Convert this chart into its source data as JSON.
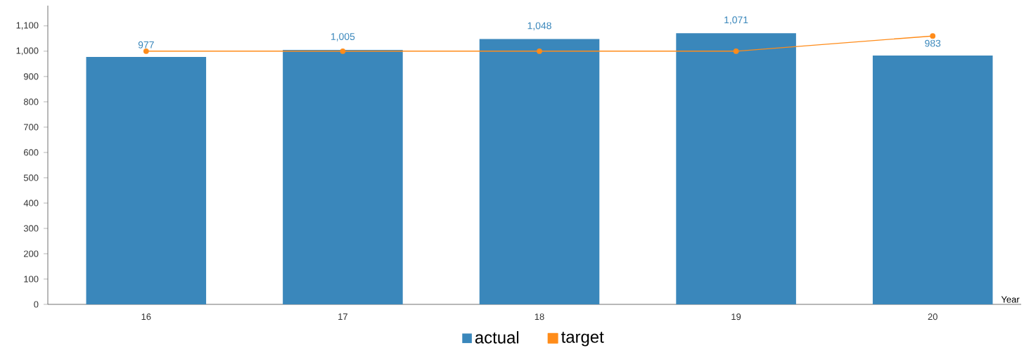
{
  "chart_data": {
    "type": "bar",
    "xlabel": "Year",
    "categories": [
      "16",
      "17",
      "18",
      "19",
      "20"
    ],
    "series": [
      {
        "name": "actual",
        "color": "#3a87bb",
        "values": [
          977,
          1005,
          1048,
          1071,
          983
        ],
        "value_labels": [
          "977",
          "1,005",
          "1,048",
          "1,071",
          "983"
        ]
      },
      {
        "name": "target",
        "type": "line",
        "color": "#ff8c1a",
        "marker": "circle",
        "values": [
          1000,
          1000,
          1000,
          1000,
          1060
        ]
      }
    ],
    "ylim": [
      0,
      1180
    ],
    "yticks": [
      0,
      100,
      200,
      300,
      400,
      500,
      600,
      700,
      800,
      900,
      {
        "value": 1000,
        "label": "1,000"
      },
      {
        "value": 1100,
        "label": "1,100"
      }
    ],
    "legend": "bottom",
    "grid": false
  }
}
